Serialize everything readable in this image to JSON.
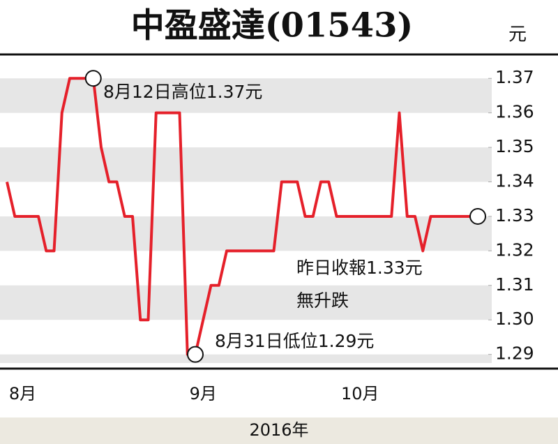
{
  "chart_data": {
    "type": "line",
    "title": "中盈盛達(01543)",
    "y_label": "元",
    "x_label": "2016年",
    "categories": [
      null,
      null,
      "8月",
      null,
      null,
      null,
      null,
      null,
      null,
      null,
      null,
      null,
      null,
      null,
      null,
      null,
      null,
      null,
      null,
      null,
      null,
      null,
      null,
      null,
      null,
      "9月",
      null,
      null,
      null,
      null,
      null,
      null,
      null,
      null,
      null,
      null,
      null,
      null,
      null,
      null,
      null,
      null,
      null,
      null,
      null,
      "10月",
      null,
      null,
      null,
      null,
      null,
      null,
      null,
      null,
      null,
      null,
      null,
      null,
      null,
      null,
      null
    ],
    "series": [
      {
        "color": "#e5202a",
        "values": [
          1.34,
          1.33,
          1.33,
          1.33,
          1.33,
          1.32,
          1.32,
          1.36,
          1.37,
          1.37,
          1.37,
          1.37,
          1.35,
          1.34,
          1.34,
          1.33,
          1.33,
          1.3,
          1.3,
          1.36,
          1.36,
          1.36,
          1.36,
          1.29,
          1.29,
          1.3,
          1.31,
          1.31,
          1.32,
          1.32,
          1.32,
          1.32,
          1.32,
          1.32,
          1.32,
          1.34,
          1.34,
          1.34,
          1.33,
          1.33,
          1.34,
          1.34,
          1.33,
          1.33,
          1.33,
          1.33,
          1.33,
          1.33,
          1.33,
          1.33,
          1.36,
          1.33,
          1.33,
          1.32,
          1.33,
          1.33,
          1.33,
          1.33,
          1.33,
          1.33,
          1.33
        ]
      }
    ],
    "ylim": [
      1.2875,
      1.3745
    ],
    "yticks": [
      1.29,
      {
        "value": 1.3,
        "label": "1.30"
      },
      1.31,
      1.32,
      1.33,
      1.34,
      1.35,
      1.36,
      1.37
    ],
    "markers": [
      11,
      24,
      60
    ],
    "annotations": [
      "8月12日高位1.37元",
      "8月31日低位1.29元",
      "昨日收報1.33元",
      "無升跌"
    ]
  }
}
